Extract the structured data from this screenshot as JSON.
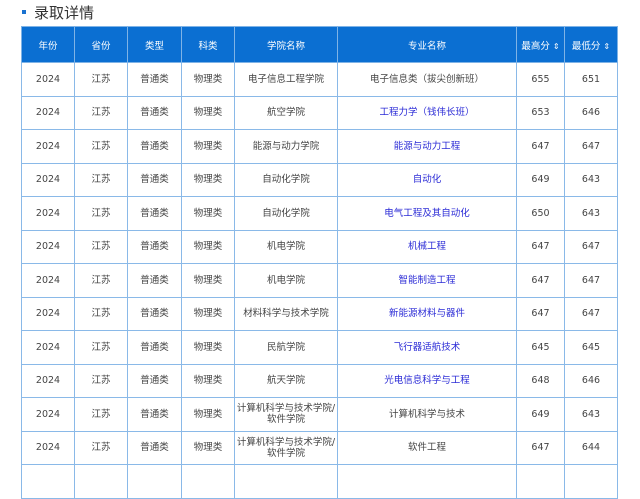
{
  "title": "录取详情",
  "columns": [
    "年份",
    "省份",
    "类型",
    "科类",
    "学院名称",
    "专业名称",
    "最高分",
    "最低分"
  ],
  "sort_icon": "⇕",
  "rows": [
    {
      "year": "2024",
      "province": "江苏",
      "type": "普通类",
      "subject": "物理类",
      "college": "电子信息工程学院",
      "major": "电子信息类（拔尖创新班）",
      "link": false,
      "max": "655",
      "min": "651"
    },
    {
      "year": "2024",
      "province": "江苏",
      "type": "普通类",
      "subject": "物理类",
      "college": "航空学院",
      "major": "工程力学（钱伟长班）",
      "link": true,
      "max": "653",
      "min": "646"
    },
    {
      "year": "2024",
      "province": "江苏",
      "type": "普通类",
      "subject": "物理类",
      "college": "能源与动力学院",
      "major": "能源与动力工程",
      "link": true,
      "max": "647",
      "min": "647"
    },
    {
      "year": "2024",
      "province": "江苏",
      "type": "普通类",
      "subject": "物理类",
      "college": "自动化学院",
      "major": "自动化",
      "link": true,
      "max": "649",
      "min": "643"
    },
    {
      "year": "2024",
      "province": "江苏",
      "type": "普通类",
      "subject": "物理类",
      "college": "自动化学院",
      "major": "电气工程及其自动化",
      "link": true,
      "max": "650",
      "min": "643"
    },
    {
      "year": "2024",
      "province": "江苏",
      "type": "普通类",
      "subject": "物理类",
      "college": "机电学院",
      "major": "机械工程",
      "link": true,
      "max": "647",
      "min": "647"
    },
    {
      "year": "2024",
      "province": "江苏",
      "type": "普通类",
      "subject": "物理类",
      "college": "机电学院",
      "major": "智能制造工程",
      "link": true,
      "max": "647",
      "min": "647"
    },
    {
      "year": "2024",
      "province": "江苏",
      "type": "普通类",
      "subject": "物理类",
      "college": "材料科学与技术学院",
      "major": "新能源材料与器件",
      "link": true,
      "max": "647",
      "min": "647"
    },
    {
      "year": "2024",
      "province": "江苏",
      "type": "普通类",
      "subject": "物理类",
      "college": "民航学院",
      "major": "飞行器适航技术",
      "link": true,
      "max": "645",
      "min": "645"
    },
    {
      "year": "2024",
      "province": "江苏",
      "type": "普通类",
      "subject": "物理类",
      "college": "航天学院",
      "major": "光电信息科学与工程",
      "link": true,
      "max": "648",
      "min": "646"
    },
    {
      "year": "2024",
      "province": "江苏",
      "type": "普通类",
      "subject": "物理类",
      "college": "计算机科学与技术学院/软件学院",
      "major": "计算机科学与技术",
      "link": false,
      "max": "649",
      "min": "643"
    },
    {
      "year": "2024",
      "province": "江苏",
      "type": "普通类",
      "subject": "物理类",
      "college": "计算机科学与技术学院/软件学院",
      "major": "软件工程",
      "link": false,
      "max": "647",
      "min": "644"
    }
  ]
}
